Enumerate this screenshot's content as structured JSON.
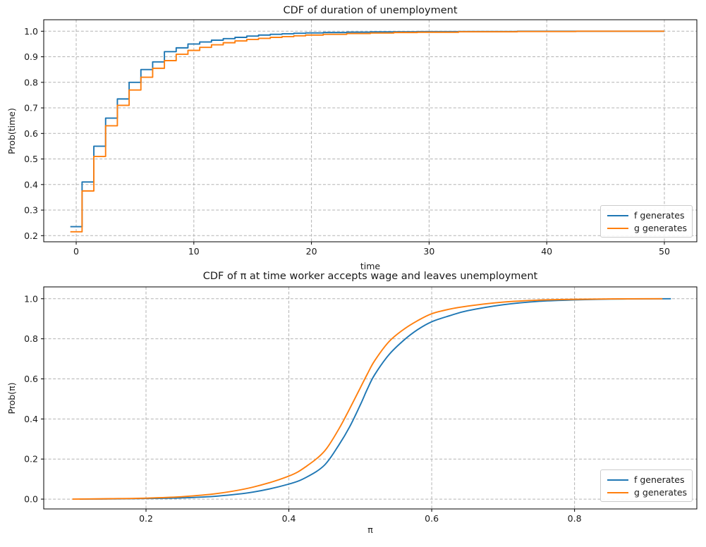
{
  "figure": {
    "background": "#ffffff",
    "text_color": "#1a1a1a",
    "grid_color": "#b3b3b3",
    "spine_color": "#000000"
  },
  "chart_data": [
    {
      "type": "line",
      "draw_style": "steps-mid",
      "title": "CDF of duration of unemployment",
      "xlabel": "time",
      "ylabel": "Prob(time)",
      "xlim": [
        -2.76,
        52.76
      ],
      "ylim": [
        0.176,
        1.045
      ],
      "xticks": [
        0,
        10,
        20,
        30,
        40,
        50
      ],
      "xtick_labels": [
        "0",
        "10",
        "20",
        "30",
        "40",
        "50"
      ],
      "yticks": [
        0.2,
        0.3,
        0.4,
        0.5,
        0.6,
        0.7,
        0.8,
        0.9,
        1.0
      ],
      "ytick_labels": [
        "0.2",
        "0.3",
        "0.4",
        "0.5",
        "0.6",
        "0.7",
        "0.8",
        "0.9",
        "1.0"
      ],
      "grid": true,
      "grid_style": "dashed",
      "legend_position": "lower right",
      "series": [
        {
          "name": "f generates",
          "color": "#1f77b4",
          "x": [
            0,
            1,
            2,
            3,
            4,
            5,
            6,
            7,
            8,
            9,
            10,
            11,
            12,
            13,
            14,
            15,
            16,
            17,
            18,
            19,
            20,
            22,
            24,
            26,
            28,
            30,
            35,
            40,
            45,
            50
          ],
          "y": [
            0.235,
            0.41,
            0.55,
            0.66,
            0.735,
            0.8,
            0.85,
            0.88,
            0.92,
            0.935,
            0.95,
            0.958,
            0.965,
            0.971,
            0.976,
            0.981,
            0.985,
            0.988,
            0.99,
            0.992,
            0.9935,
            0.995,
            0.9965,
            0.9975,
            0.998,
            0.9985,
            0.999,
            1.0,
            1.0,
            1.0
          ]
        },
        {
          "name": "g generates",
          "color": "#ff7f0e",
          "x": [
            0,
            1,
            2,
            3,
            4,
            5,
            6,
            7,
            8,
            9,
            10,
            11,
            12,
            13,
            14,
            15,
            16,
            17,
            18,
            19,
            20,
            22,
            24,
            26,
            28,
            30,
            35,
            40,
            45,
            50
          ],
          "y": [
            0.215,
            0.375,
            0.51,
            0.63,
            0.71,
            0.77,
            0.82,
            0.855,
            0.885,
            0.91,
            0.925,
            0.937,
            0.947,
            0.955,
            0.962,
            0.968,
            0.972,
            0.976,
            0.979,
            0.982,
            0.985,
            0.988,
            0.991,
            0.993,
            0.995,
            0.996,
            0.998,
            0.999,
            1.0,
            1.0
          ]
        }
      ]
    },
    {
      "type": "line",
      "draw_style": "smooth",
      "title": "CDF of π at time worker accepts wage and leaves unemployment",
      "xlabel": "π",
      "ylabel": "Prob(π)",
      "xlim": [
        0.0568,
        0.9712
      ],
      "ylim": [
        -0.049,
        1.059
      ],
      "xticks": [
        0.2,
        0.4,
        0.6,
        0.8
      ],
      "xtick_labels": [
        "0.2",
        "0.4",
        "0.6",
        "0.8"
      ],
      "yticks": [
        0.0,
        0.2,
        0.4,
        0.6,
        0.8,
        1.0
      ],
      "ytick_labels": [
        "0.0",
        "0.2",
        "0.4",
        "0.6",
        "0.8",
        "1.0"
      ],
      "grid": true,
      "grid_style": "dashed",
      "legend_position": "lower right",
      "series": [
        {
          "name": "f generates",
          "color": "#1f77b4",
          "x": [
            0.107,
            0.15,
            0.2,
            0.25,
            0.3,
            0.35,
            0.4,
            0.425,
            0.45,
            0.47,
            0.485,
            0.5,
            0.51,
            0.52,
            0.54,
            0.56,
            0.58,
            0.6,
            0.625,
            0.65,
            0.7,
            0.75,
            0.8,
            0.85,
            0.9,
            0.935
          ],
          "y": [
            0.0,
            0.001,
            0.003,
            0.006,
            0.015,
            0.035,
            0.075,
            0.11,
            0.17,
            0.27,
            0.36,
            0.47,
            0.55,
            0.62,
            0.72,
            0.79,
            0.845,
            0.885,
            0.915,
            0.94,
            0.97,
            0.987,
            0.994,
            0.998,
            0.9995,
            1.0
          ]
        },
        {
          "name": "g generates",
          "color": "#ff7f0e",
          "x": [
            0.097,
            0.15,
            0.2,
            0.25,
            0.3,
            0.35,
            0.4,
            0.425,
            0.45,
            0.47,
            0.485,
            0.5,
            0.51,
            0.52,
            0.54,
            0.56,
            0.58,
            0.6,
            0.625,
            0.65,
            0.7,
            0.75,
            0.8,
            0.85,
            0.9,
            0.923
          ],
          "y": [
            0.0,
            0.002,
            0.005,
            0.012,
            0.028,
            0.06,
            0.115,
            0.165,
            0.24,
            0.35,
            0.45,
            0.555,
            0.625,
            0.69,
            0.785,
            0.845,
            0.89,
            0.925,
            0.948,
            0.963,
            0.983,
            0.993,
            0.997,
            0.999,
            1.0,
            1.0
          ]
        }
      ]
    }
  ]
}
